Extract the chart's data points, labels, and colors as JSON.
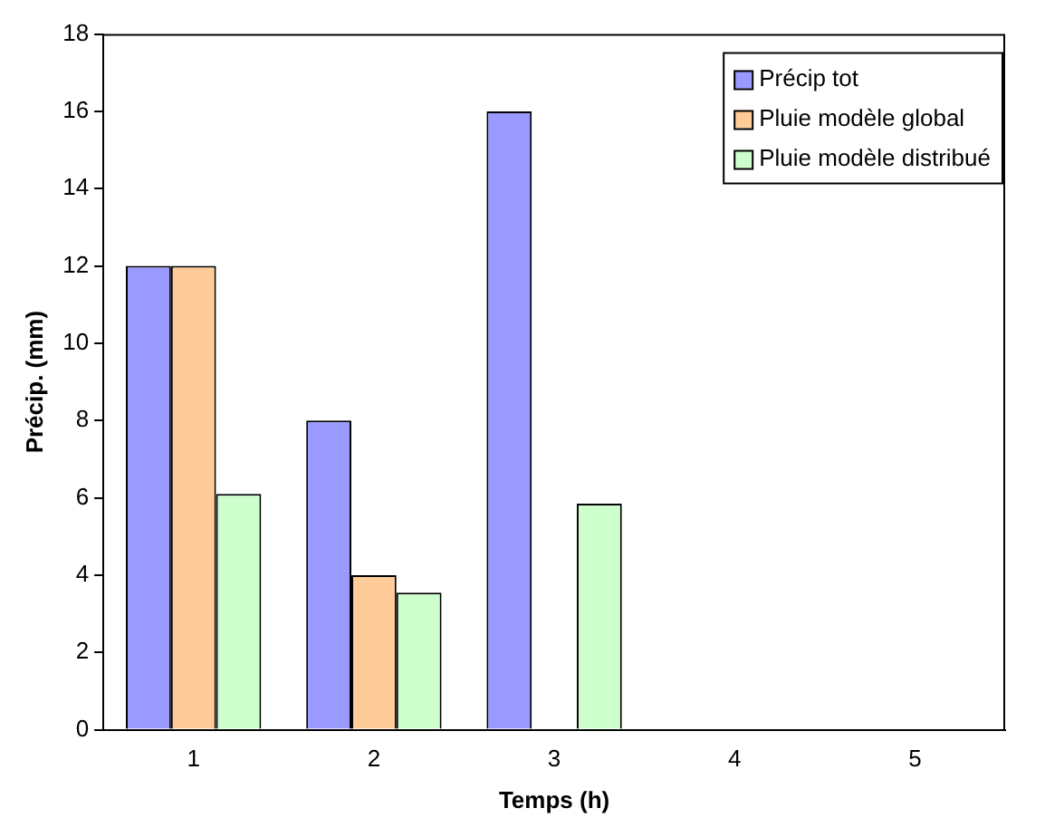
{
  "chart_data": {
    "type": "bar",
    "xlabel": "Temps (h)",
    "ylabel": "Précip. (mm)",
    "categories": [
      "1",
      "2",
      "3",
      "4",
      "5"
    ],
    "series": [
      {
        "name": "Précip tot",
        "color": "#9999ff",
        "values": [
          12,
          8,
          16,
          0,
          0
        ]
      },
      {
        "name": "Pluie modèle global",
        "color": "#ffcc99",
        "values": [
          12,
          4,
          0,
          0,
          0
        ]
      },
      {
        "name": "Pluie modèle distribué",
        "color": "#ccffcc",
        "values": [
          6.1,
          3.55,
          5.85,
          0,
          0
        ]
      }
    ],
    "ylim": [
      0,
      18
    ],
    "yticks": [
      0,
      2,
      4,
      6,
      8,
      10,
      12,
      14,
      16,
      18
    ],
    "grid": false,
    "legend": "top right"
  }
}
